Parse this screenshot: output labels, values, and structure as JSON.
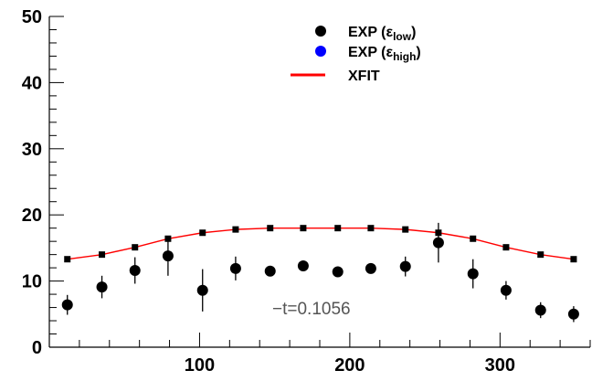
{
  "chart_data": {
    "type": "scatter",
    "xlim": [
      0,
      360
    ],
    "ylim": [
      0,
      50
    ],
    "x_ticks": [
      100,
      200,
      300
    ],
    "y_ticks": [
      0,
      10,
      20,
      30,
      40,
      50
    ],
    "grid": false,
    "legend_position": "top-right",
    "annotation": "−t=0.1056",
    "series": [
      {
        "legend": {
          "base": "EXP (ε",
          "sub": "low",
          "close": ")"
        },
        "marker": "circle",
        "color": "#000000",
        "points": [
          {
            "x": 12,
            "y": 6.4,
            "err": 1.5
          },
          {
            "x": 35,
            "y": 9.1,
            "err": 1.7
          },
          {
            "x": 57,
            "y": 11.6,
            "err": 2.0
          },
          {
            "x": 79,
            "y": 13.8,
            "err": 3.0
          },
          {
            "x": 102,
            "y": 8.6,
            "err": 3.2
          },
          {
            "x": 124,
            "y": 11.9,
            "err": 1.8
          },
          {
            "x": 147,
            "y": 11.5,
            "err": 0.6
          },
          {
            "x": 169,
            "y": 12.3,
            "err": 0.6
          },
          {
            "x": 192,
            "y": 11.4,
            "err": 0.6
          },
          {
            "x": 214,
            "y": 11.9,
            "err": 0.6
          },
          {
            "x": 237,
            "y": 12.2,
            "err": 1.5
          },
          {
            "x": 259,
            "y": 15.8,
            "err": 3.0
          },
          {
            "x": 282,
            "y": 11.1,
            "err": 2.2
          },
          {
            "x": 304,
            "y": 8.6,
            "err": 1.4
          },
          {
            "x": 327,
            "y": 5.6,
            "err": 1.2
          },
          {
            "x": 349,
            "y": 5.0,
            "err": 1.2
          }
        ]
      },
      {
        "legend": {
          "base": "EXP (ε",
          "sub": "high",
          "close": ")"
        },
        "marker": "circle",
        "color": "#0000ff",
        "points": []
      },
      {
        "legend": {
          "base": "XFIT",
          "sub": "",
          "close": ""
        },
        "marker": "square-line",
        "color": "#ff0000",
        "points": [
          {
            "x": 12,
            "y": 13.3
          },
          {
            "x": 35,
            "y": 14.0
          },
          {
            "x": 57,
            "y": 15.1
          },
          {
            "x": 79,
            "y": 16.4
          },
          {
            "x": 102,
            "y": 17.3
          },
          {
            "x": 124,
            "y": 17.8
          },
          {
            "x": 147,
            "y": 18.0
          },
          {
            "x": 169,
            "y": 18.0
          },
          {
            "x": 192,
            "y": 18.0
          },
          {
            "x": 214,
            "y": 18.0
          },
          {
            "x": 237,
            "y": 17.8
          },
          {
            "x": 259,
            "y": 17.3
          },
          {
            "x": 282,
            "y": 16.4
          },
          {
            "x": 304,
            "y": 15.1
          },
          {
            "x": 327,
            "y": 14.0
          },
          {
            "x": 349,
            "y": 13.3
          }
        ]
      }
    ]
  }
}
